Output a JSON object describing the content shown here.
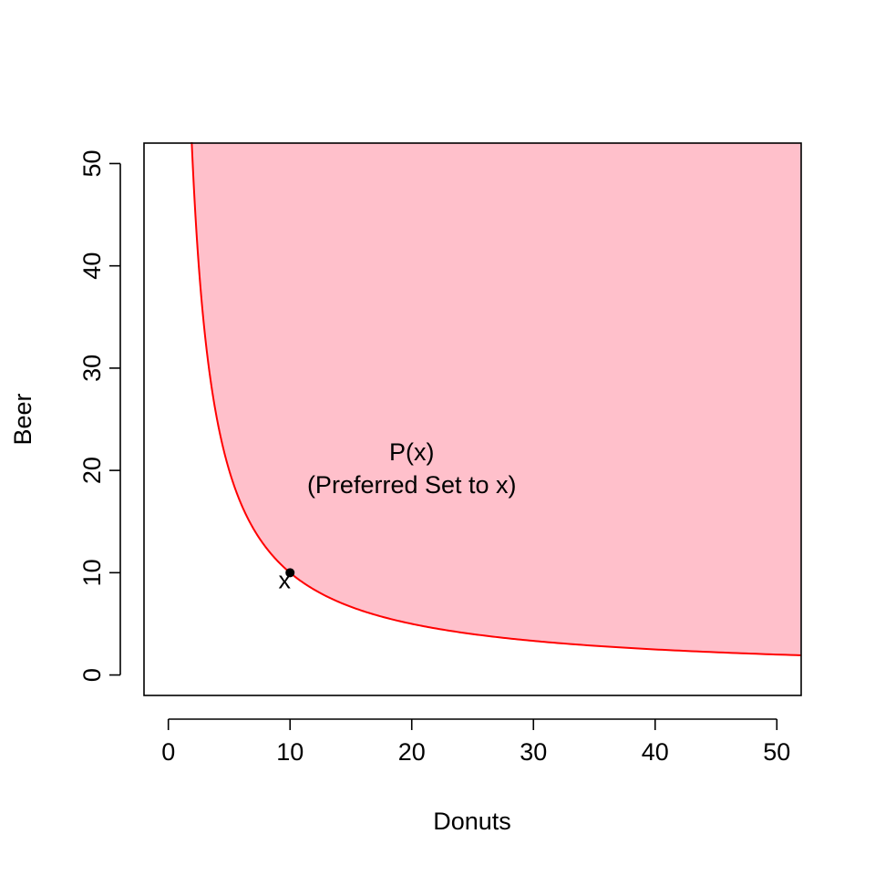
{
  "chart_data": {
    "type": "area",
    "title": "",
    "xlabel": "Donuts",
    "ylabel": "Beer",
    "xlim": [
      -2,
      52
    ],
    "ylim": [
      -2,
      52
    ],
    "x_ticks": [
      "0",
      "10",
      "20",
      "30",
      "40",
      "50"
    ],
    "y_ticks": [
      "0",
      "10",
      "20",
      "30",
      "40",
      "50"
    ],
    "grid": false,
    "curve": {
      "equation": "Beer = 100 / Donuts",
      "color": "#ff0000",
      "x": [
        1.92,
        2,
        2.5,
        3,
        4,
        5,
        6,
        7,
        8,
        10,
        12,
        15,
        20,
        25,
        30,
        35,
        40,
        45,
        50,
        52
      ],
      "y": [
        52,
        50,
        40,
        33.3,
        25,
        20,
        16.7,
        14.3,
        12.5,
        10,
        8.33,
        6.67,
        5,
        4,
        3.33,
        2.86,
        2.5,
        2.22,
        2,
        1.92
      ]
    },
    "region": {
      "fill": "#ffc0cb",
      "description": "area above the curve shaded"
    },
    "point": {
      "x": 10,
      "y": 10,
      "label": "x"
    },
    "annotation": {
      "line1": "P(x)",
      "line2": "(Preferred Set to x)",
      "x": 20,
      "y1": 21,
      "y2": 17.8
    }
  }
}
